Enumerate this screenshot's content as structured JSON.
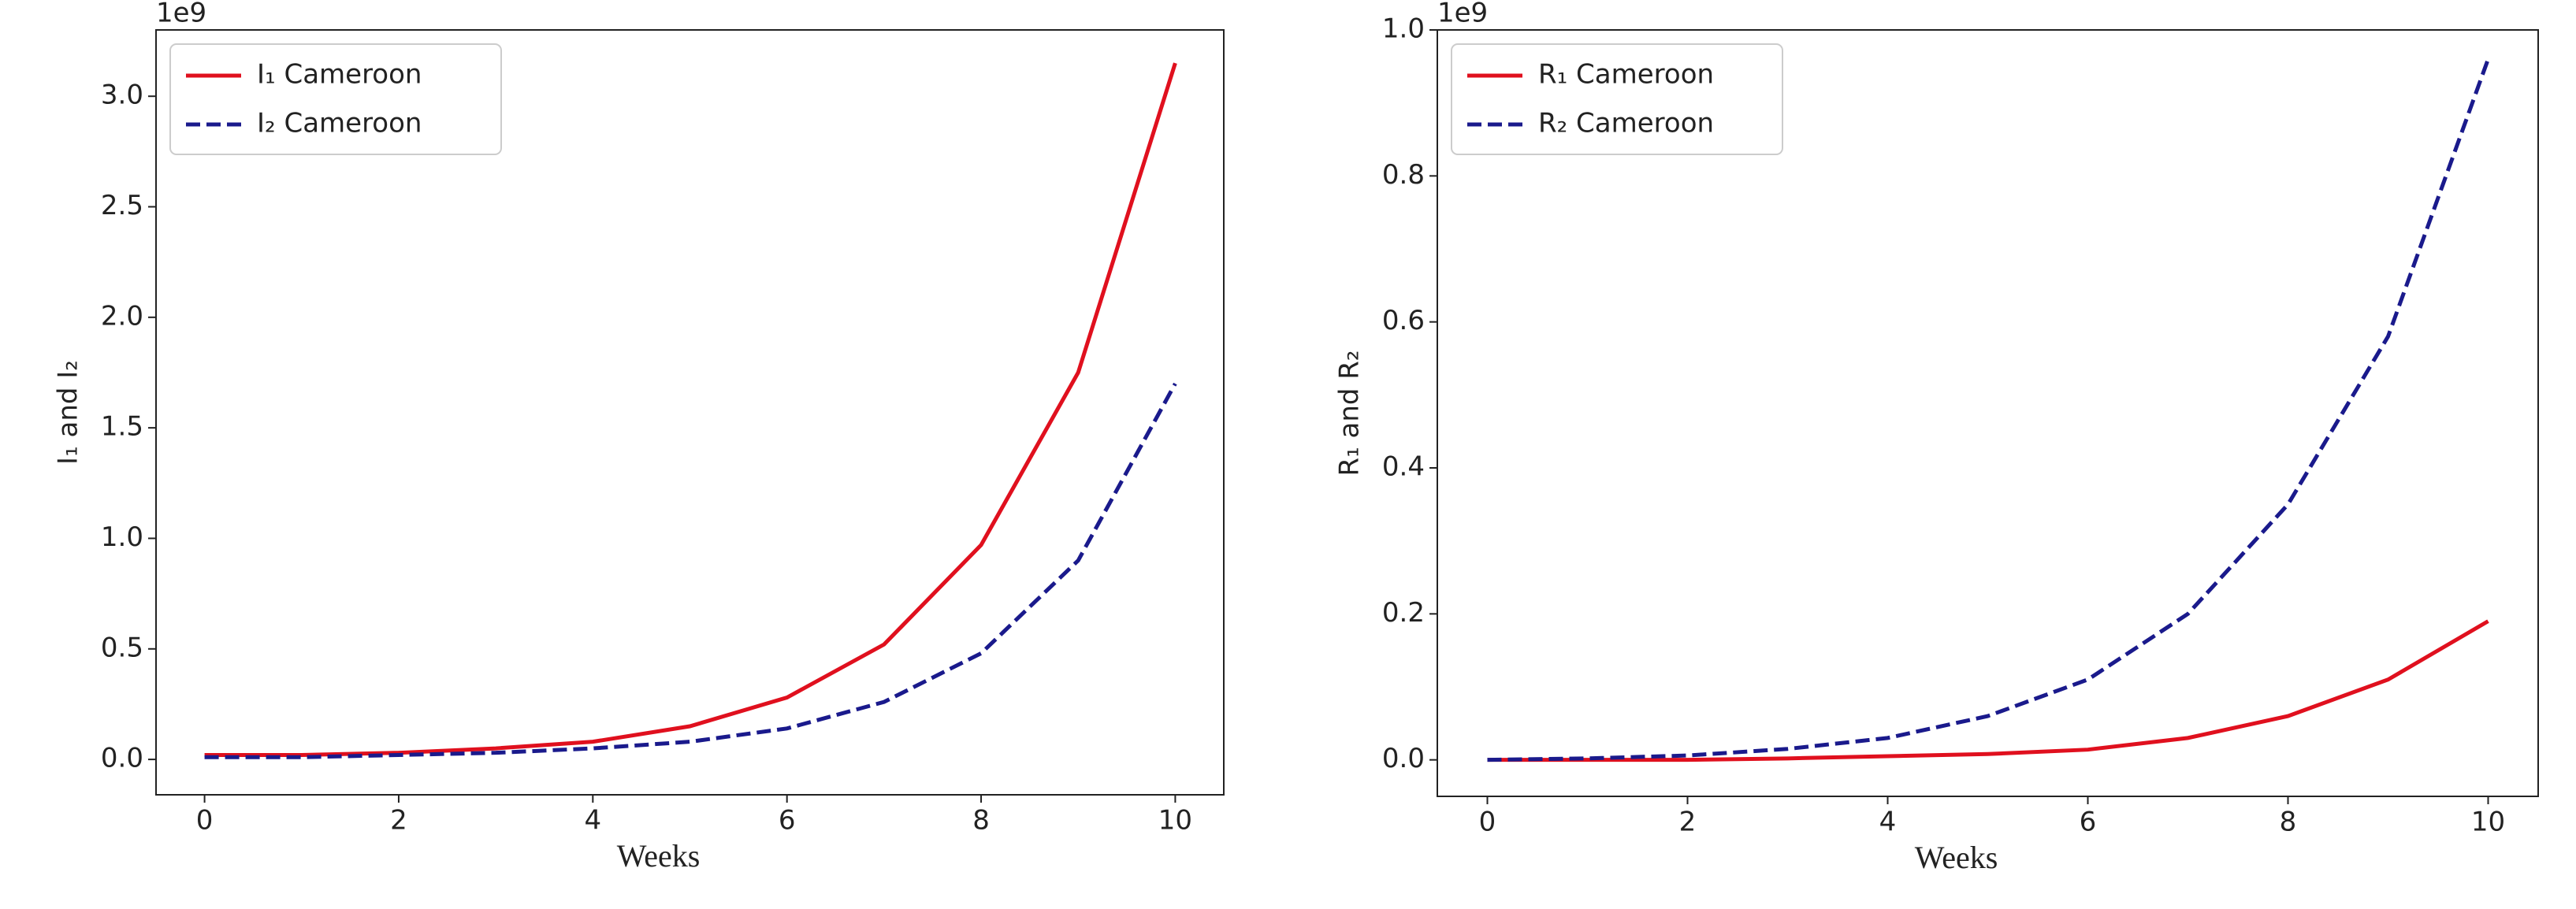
{
  "chart_data": [
    {
      "type": "line",
      "ylabel": "I₁ and I₂",
      "xlabel": "Weeks",
      "offset_text": "1e9",
      "x": [
        0,
        1,
        2,
        3,
        4,
        5,
        6,
        7,
        8,
        9,
        10
      ],
      "series": [
        {
          "name": "I₁ Cameroon",
          "color": "#e0101e",
          "linestyle": "solid",
          "values": [
            0.02,
            0.02,
            0.03,
            0.05,
            0.08,
            0.15,
            0.28,
            0.52,
            0.97,
            1.75,
            3.15
          ]
        },
        {
          "name": "I₂ Cameroon",
          "color": "#1a1a8c",
          "linestyle": "dashed",
          "values": [
            0.01,
            0.01,
            0.02,
            0.03,
            0.05,
            0.08,
            0.14,
            0.26,
            0.48,
            0.9,
            1.7
          ]
        }
      ],
      "xlim": [
        -0.5,
        10.5
      ],
      "xticks": [
        0,
        2,
        4,
        6,
        8,
        10
      ],
      "ylim": [
        -0.16,
        3.3
      ],
      "yticks": [
        {
          "value": 0,
          "label": "0.0"
        },
        {
          "value": 0.5,
          "label": "0.5"
        },
        {
          "value": 1,
          "label": "1.0"
        },
        {
          "value": 1.5,
          "label": "1.5"
        },
        {
          "value": 2,
          "label": "2.0"
        },
        {
          "value": 2.5,
          "label": "2.5"
        },
        {
          "value": 3,
          "label": "3.0"
        }
      ],
      "legend": "upper left"
    },
    {
      "type": "line",
      "ylabel": "R₁ and R₂",
      "xlabel": "Weeks",
      "offset_text": "1e9",
      "x": [
        0,
        1,
        2,
        3,
        4,
        5,
        6,
        7,
        8,
        9,
        10
      ],
      "series": [
        {
          "name": "R₁ Cameroon",
          "color": "#e0101e",
          "linestyle": "solid",
          "values": [
            0,
            0,
            0,
            0.002,
            0.005,
            0.008,
            0.014,
            0.03,
            0.06,
            0.11,
            0.19
          ]
        },
        {
          "name": "R₂ Cameroon",
          "color": "#1a1a8c",
          "linestyle": "dashed",
          "values": [
            0,
            0.002,
            0.006,
            0.015,
            0.03,
            0.06,
            0.11,
            0.2,
            0.35,
            0.58,
            0.96
          ]
        }
      ],
      "xlim": [
        -0.5,
        10.5
      ],
      "xticks": [
        0,
        2,
        4,
        6,
        8,
        10
      ],
      "ylim": [
        -0.05,
        1.0
      ],
      "yticks": [
        {
          "value": 0,
          "label": "0.0"
        },
        {
          "value": 0.2,
          "label": "0.2"
        },
        {
          "value": 0.4,
          "label": "0.4"
        },
        {
          "value": 0.6,
          "label": "0.6"
        },
        {
          "value": 0.8,
          "label": "0.8"
        },
        {
          "value": 1,
          "label": "1.0"
        }
      ],
      "legend": "upper left"
    }
  ]
}
